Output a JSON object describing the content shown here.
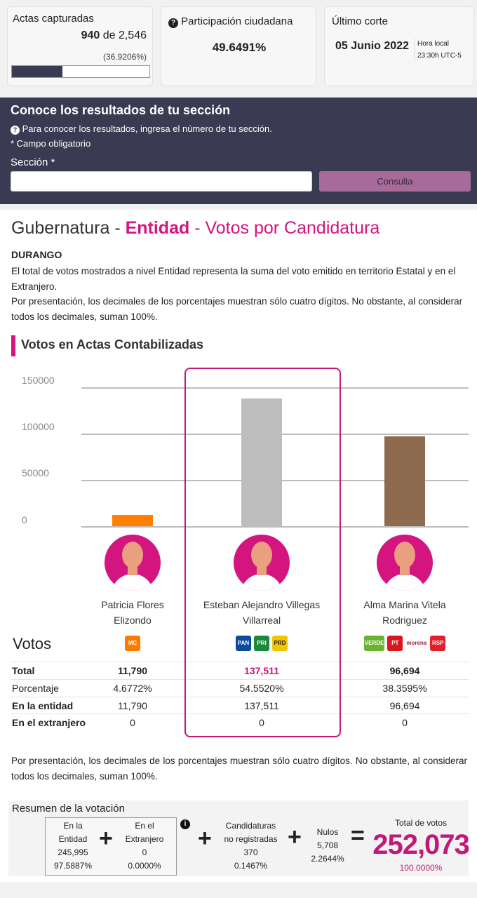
{
  "header": {
    "actas": {
      "label": "Actas capturadas",
      "count": "940",
      "of": "de 2,546",
      "percent": "(36.9206%)",
      "progress": 36.9206
    },
    "participacion": {
      "label": "Participación ciudadana",
      "value": "49.6491%"
    },
    "corte": {
      "label": "Último corte",
      "date": "05 Junio 2022",
      "time_label": "Hora local",
      "time": "23:30h UTC-5"
    }
  },
  "seccion": {
    "title": "Conoce los resultados de tu sección",
    "help": "Para conocer los resultados, ingresa el número de tu sección.",
    "required_note": "* Campo obligatorio",
    "field_label": "Sección *",
    "placeholder": "",
    "button": "Consulta"
  },
  "main": {
    "title_a": "Gubernatura - ",
    "title_b": "Entidad",
    "title_c": " - Votos por Candidatura",
    "state": "DURANGO",
    "note1": "El total de votos mostrados a nivel Entidad representa la suma del voto emitido en territorio Estatal y en el Extranjero.",
    "note2": "Por presentación, los decimales de los porcentajes muestran sólo cuatro dígitos. No obstante, al considerar todos los decimales, suman 100%.",
    "section_title": "Votos en Actas Contabilizadas",
    "footnote": "Por presentación, los decimales de los porcentajes muestran sólo cuatro dígitos. No obstante, al considerar todos los decimales, suman 100%."
  },
  "chart_data": {
    "type": "bar",
    "ylim": [
      0,
      150000
    ],
    "yticks": [
      "150000",
      "100000",
      "50000",
      "0"
    ],
    "grid": true,
    "categories": [
      "Patricia Flores Elizondo",
      "Esteban Alejandro Villegas Villarreal",
      "Alma Marina Vitela Rodriguez"
    ],
    "values": [
      11790,
      137511,
      96694
    ],
    "colors": [
      "#ff8000",
      "#bdbdbd",
      "#8e6a4e"
    ],
    "highlight_index": 1
  },
  "candidates": [
    {
      "name_1": "Patricia Flores",
      "name_2": "Elizondo",
      "parties": [
        "MC"
      ],
      "total": "11,790",
      "pct": "4.6772%",
      "entidad": "11,790",
      "extranjero": "0"
    },
    {
      "name_1": "Esteban Alejandro Villegas",
      "name_2": "Villarreal",
      "parties": [
        "PAN",
        "PRI",
        "PRD"
      ],
      "total": "137,511",
      "pct": "54.5520%",
      "entidad": "137,511",
      "extranjero": "0"
    },
    {
      "name_1": "Alma Marina Vitela",
      "name_2": "Rodriguez",
      "parties": [
        "VERDE",
        "PT",
        "morena",
        "RSP"
      ],
      "total": "96,694",
      "pct": "38.3595%",
      "entidad": "96,694",
      "extranjero": "0"
    }
  ],
  "table": {
    "heading": "Votos",
    "total": "Total",
    "pct": "Porcentaje",
    "entidad": "En la entidad",
    "extranjero": "En el extranjero"
  },
  "resumen": {
    "title": "Resumen de la votación",
    "entidad": {
      "l1": "En la",
      "l2": "Entidad",
      "value": "245,995",
      "pct": "97.5887%"
    },
    "extranjero": {
      "l1": "En el",
      "l2": "Extranjero",
      "value": "0",
      "pct": "0.0000%"
    },
    "no_reg": {
      "l1": "Candidaturas",
      "l2": "no registradas",
      "value": "370",
      "pct": "0.1467%"
    },
    "nulos": {
      "l1": "Nulos",
      "value": "5,708",
      "pct": "2.2644%"
    },
    "total": {
      "label": "Total de votos",
      "value": "252,073",
      "pct": "100.0000%"
    }
  },
  "colors": {
    "accent": "#d4147f",
    "dark": "#3a3a52",
    "button": "#a66a9b"
  }
}
